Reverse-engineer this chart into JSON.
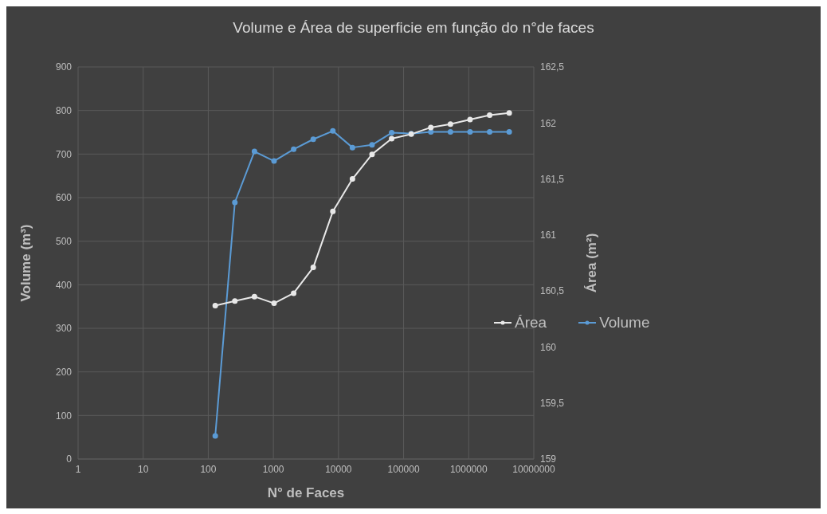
{
  "chart_data": {
    "type": "line",
    "title": "Volume e Área de superficie em função do n°de faces",
    "xlabel": "N° de Faces",
    "ylabel": "Volume (m³)",
    "y2label": "Área (m²)",
    "x": [
      128,
      256,
      512,
      1024,
      2048,
      4096,
      8192,
      16384,
      32768,
      65536,
      131072,
      262144,
      524288,
      1048576,
      2097152,
      4194304
    ],
    "series": [
      {
        "name": "Área",
        "color": "#e8e8e8",
        "axis": "y2",
        "values": [
          160.37,
          160.41,
          160.45,
          160.39,
          160.48,
          160.71,
          161.21,
          161.5,
          161.72,
          161.86,
          161.9,
          161.96,
          161.99,
          162.03,
          162.07,
          162.09
        ]
      },
      {
        "name": "Volume",
        "color": "#5b9bd5",
        "values": [
          53,
          589,
          706,
          684,
          711,
          734,
          753,
          715,
          721,
          749,
          747,
          751,
          751,
          751,
          751,
          751
        ]
      }
    ],
    "log": "x",
    "xlim": [
      1,
      10000000
    ],
    "xticks": [
      1,
      10,
      100,
      1000,
      10000,
      100000,
      1000000,
      10000000
    ],
    "ylim": [
      0,
      900
    ],
    "yticks": [
      0,
      100,
      200,
      300,
      400,
      500,
      600,
      700,
      800,
      900
    ],
    "y2lim": [
      159,
      162.5
    ],
    "y2ticks": [
      159,
      {
        "value": 159.5,
        "label": "159,5"
      },
      160,
      {
        "value": 160.5,
        "label": "160,5"
      },
      161,
      {
        "value": 161.5,
        "label": "161,5"
      },
      162,
      {
        "value": 162.5,
        "label": "162,5"
      }
    ],
    "grid": true,
    "legend": "right",
    "marker": "circle",
    "line_style": "solid"
  }
}
